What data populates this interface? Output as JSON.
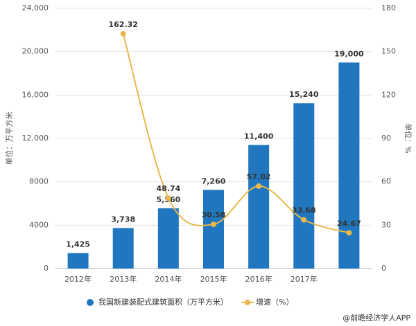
{
  "chart_data": {
    "type": "bar",
    "categories": [
      "2012年",
      "2013年",
      "2014年",
      "2015年",
      "2016年",
      "2017年",
      null
    ],
    "series": [
      {
        "name": "我国新建装配式建筑面积（万平方米）",
        "type": "bar",
        "color": "#2177bf",
        "values": [
          1425,
          3738,
          5560,
          7260,
          11400,
          15240,
          19000
        ],
        "value_labels": [
          "1,425",
          "3,738",
          "5,560",
          "7,260",
          "11,400",
          "15,240",
          "19,000"
        ]
      },
      {
        "name": "增速（%）",
        "type": "line",
        "axis": "y2",
        "color": "#e8b84a",
        "values": [
          null,
          162.32,
          48.74,
          30.58,
          57.02,
          33.68,
          24.67
        ]
      }
    ],
    "ylabel": "单位：万平方米",
    "y2label": "单位：%",
    "ylim": [
      0,
      24000
    ],
    "yticks": [
      0,
      4000,
      8000,
      {
        "value": 12000,
        "label": "12,000"
      },
      {
        "value": 16000,
        "label": "16,000"
      },
      {
        "value": 20000,
        "label": "20,000"
      },
      {
        "value": 24000,
        "label": "24,000"
      }
    ],
    "y2lim": [
      0,
      180
    ],
    "y2ticks": [
      0,
      30,
      60,
      90,
      120,
      150,
      180
    ],
    "grid": true,
    "source": "@前瞻经济学人APP"
  }
}
